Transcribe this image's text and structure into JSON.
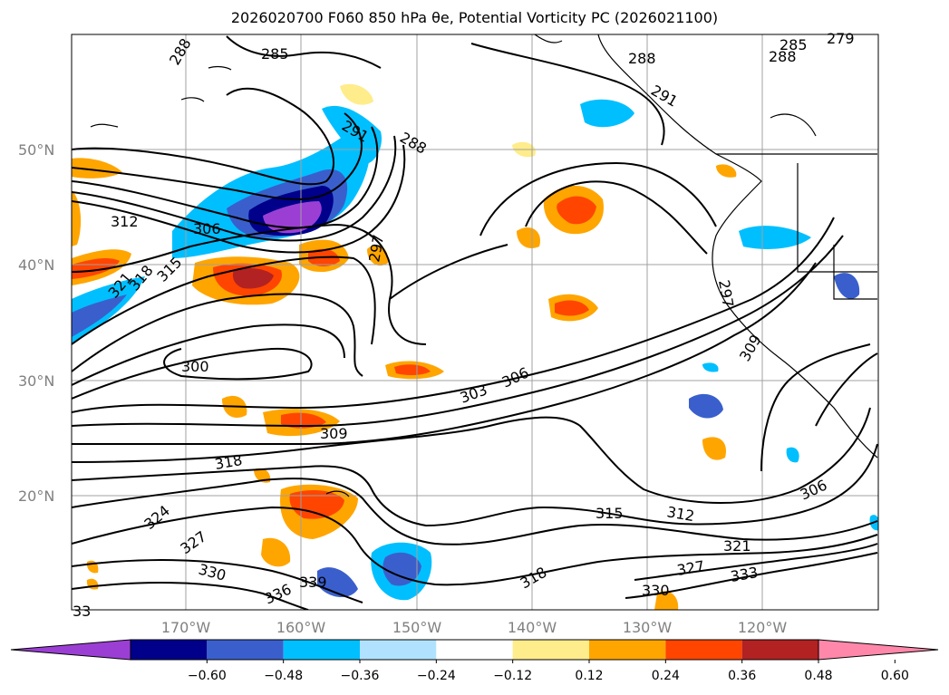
{
  "title": "2026020700 F060 850 hPa θe, Potential Vorticity PC (2026021100)",
  "lat_labels": [
    "50°N",
    "40°N",
    "30°N",
    "20°N"
  ],
  "lon_labels": [
    "170°W",
    "160°W",
    "150°W",
    "140°W",
    "130°W",
    "120°W"
  ],
  "contour_labels": [
    "288",
    "285",
    "288",
    "291",
    "288",
    "285",
    "288",
    "279",
    "291",
    "312",
    "306",
    "297",
    "321",
    "318",
    "315",
    "297",
    "300",
    "303",
    "306",
    "309",
    "309",
    "318",
    "324",
    "327",
    "330",
    "336",
    "339",
    "315",
    "312",
    "321",
    "327",
    "330",
    "333",
    "318",
    "306",
    "33"
  ],
  "colorbar": {
    "ticks": [
      "−0.60",
      "−0.48",
      "−0.36",
      "−0.24",
      "−0.12",
      "0.12",
      "0.24",
      "0.36",
      "0.48",
      "0.60"
    ],
    "colors": [
      "#9b3fd4",
      "#00008b",
      "#3a5fcd",
      "#00bfff",
      "#b0e2ff",
      "#ffffff",
      "#ffec8b",
      "#ffa500",
      "#ff4500",
      "#b22222",
      "#ff88aa"
    ]
  },
  "colors": {
    "contour": "#000000",
    "grid": "#a0a0a0",
    "coast": "#000000"
  }
}
